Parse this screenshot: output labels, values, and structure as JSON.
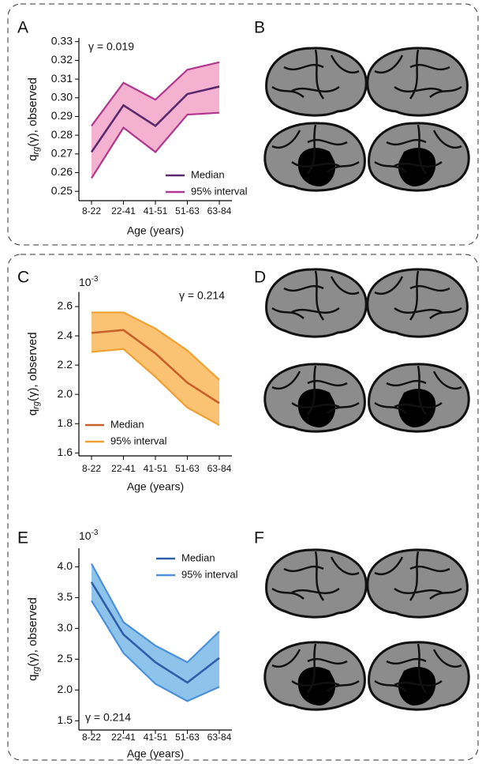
{
  "panels": [
    "A",
    "B",
    "C",
    "D",
    "E",
    "F"
  ],
  "chart_data": [
    {
      "type": "line",
      "annotation": "γ = 0.019",
      "categories": [
        "8-22",
        "22-41",
        "41-51",
        "51-63",
        "63-84"
      ],
      "xlabel": "Age (years)",
      "ylabel": [
        "q",
        "rg",
        "(γ), observed"
      ],
      "ylim": [
        0.245,
        0.332
      ],
      "yticks": [
        0.25,
        0.26,
        0.27,
        0.28,
        0.29,
        {
          "value": 0.3,
          "label": "0.30"
        },
        0.31,
        0.32,
        0.33
      ],
      "legend": "lower right",
      "band_color": "#f2a3c8",
      "series": [
        {
          "name": "Median",
          "color": "#5b2a6e",
          "values": [
            0.271,
            0.296,
            0.285,
            0.302,
            0.306
          ]
        },
        {
          "name": "95% interval",
          "color": "#b0378f",
          "lower": [
            0.257,
            0.284,
            0.271,
            0.291,
            0.292
          ],
          "upper": [
            0.285,
            0.308,
            0.299,
            0.315,
            0.319
          ]
        }
      ]
    },
    {
      "type": "line",
      "annotation": "γ = 0.214",
      "scale": [
        "10",
        "-3"
      ],
      "categories": [
        "8-22",
        "22-41",
        "41-51",
        "51-63",
        "63-84"
      ],
      "xlabel": "Age (years)",
      "ylabel": [
        "q",
        "rg",
        "(γ), observed"
      ],
      "ylim": [
        1.58,
        2.7
      ],
      "yticks": [
        1.6,
        1.8,
        {
          "value": 2,
          "label": "2.0"
        },
        2.2,
        2.4,
        2.6
      ],
      "legend": "lower left",
      "band_color": "#f9b75a",
      "series": [
        {
          "name": "Median",
          "color": "#c8602a",
          "values": [
            2.42,
            2.44,
            2.28,
            2.08,
            1.94
          ]
        },
        {
          "name": "95% interval",
          "color": "#f0a030",
          "lower": [
            2.29,
            2.31,
            2.12,
            1.91,
            1.79
          ],
          "upper": [
            2.56,
            2.56,
            2.45,
            2.3,
            2.1
          ]
        }
      ]
    },
    {
      "type": "line",
      "annotation": "γ = 0.214",
      "scale": [
        "10",
        "-3"
      ],
      "categories": [
        "8-22",
        "22-41",
        "41-51",
        "51-63",
        "63-84"
      ],
      "xlabel": "Age (years)",
      "ylabel": [
        "q",
        "rg",
        "(γ), observed"
      ],
      "ylim": [
        1.35,
        4.3
      ],
      "yticks": [
        1.5,
        {
          "value": 2,
          "label": "2.0"
        },
        2.5,
        {
          "value": 3,
          "label": "3.0"
        },
        3.5,
        {
          "value": 4,
          "label": "4.0"
        }
      ],
      "legend": "upper right",
      "band_color": "#7ab8e8",
      "series": [
        {
          "name": "Median",
          "color": "#2f5fa8",
          "values": [
            3.75,
            2.9,
            2.45,
            2.12,
            2.52
          ]
        },
        {
          "name": "95% interval",
          "color": "#4a90d9",
          "lower": [
            3.45,
            2.6,
            2.1,
            1.82,
            2.05
          ],
          "upper": [
            4.05,
            3.1,
            2.72,
            2.45,
            2.95
          ]
        }
      ]
    }
  ]
}
